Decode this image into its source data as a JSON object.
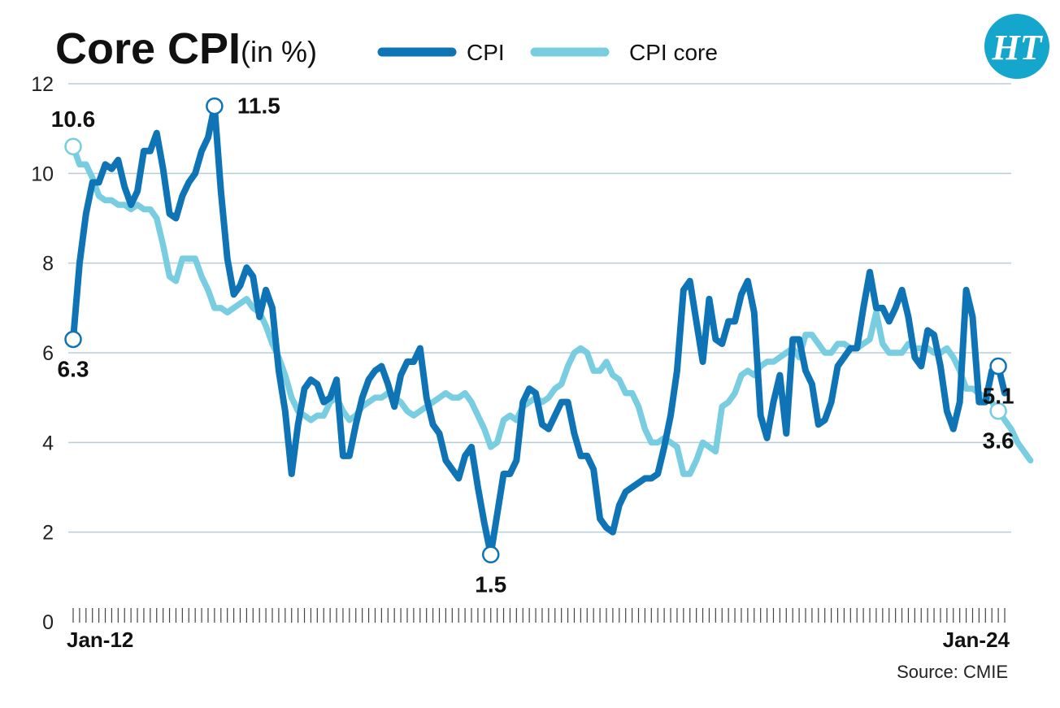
{
  "title": "Core CPI",
  "subtitle": "(in %)",
  "source": "Source: CMIE",
  "logo_text": "HT",
  "colors": {
    "cpi": "#0f74b5",
    "core": "#79cde0",
    "grid": "#b8cdd6",
    "logo": "#14a6cc"
  },
  "legend": [
    {
      "label": "CPI",
      "key": "cpi"
    },
    {
      "label": "CPI core",
      "key": "core"
    }
  ],
  "chart_data": {
    "type": "line",
    "x_start_label": "Jan-12",
    "x_end_label": "Jan-24",
    "ylim": [
      0,
      12
    ],
    "yticks": [
      0,
      2,
      4,
      6,
      8,
      10,
      12
    ],
    "grid": true,
    "legend_position": "top",
    "series": [
      {
        "name": "CPI",
        "key": "cpi",
        "values": [
          6.3,
          8.0,
          9.1,
          9.8,
          9.8,
          10.2,
          10.1,
          10.3,
          9.7,
          9.3,
          9.6,
          10.5,
          10.5,
          10.9,
          10.1,
          9.1,
          9.0,
          9.5,
          9.8,
          10.0,
          10.5,
          10.8,
          11.5,
          9.6,
          8.1,
          7.3,
          7.5,
          7.9,
          7.7,
          6.8,
          7.4,
          7.0,
          5.6,
          4.7,
          3.3,
          4.4,
          5.2,
          5.4,
          5.3,
          4.9,
          5.0,
          5.4,
          3.7,
          3.7,
          4.4,
          5.0,
          5.4,
          5.6,
          5.7,
          5.3,
          4.8,
          5.5,
          5.8,
          5.8,
          6.1,
          5.0,
          4.4,
          4.2,
          3.6,
          3.4,
          3.2,
          3.7,
          3.9,
          3.0,
          2.2,
          1.5,
          2.4,
          3.3,
          3.3,
          3.6,
          4.9,
          5.2,
          5.1,
          4.4,
          4.3,
          4.6,
          4.9,
          4.9,
          4.2,
          3.7,
          3.7,
          3.4,
          2.3,
          2.1,
          2.0,
          2.6,
          2.9,
          3.0,
          3.1,
          3.2,
          3.2,
          3.3,
          3.9,
          4.6,
          5.6,
          7.4,
          7.6,
          6.7,
          5.8,
          7.2,
          6.3,
          6.2,
          6.7,
          6.7,
          7.3,
          7.6,
          6.9,
          4.6,
          4.1,
          4.9,
          5.5,
          4.2,
          6.3,
          6.3,
          5.6,
          5.3,
          4.4,
          4.5,
          4.9,
          5.7,
          5.9,
          6.1,
          6.1,
          7.0,
          7.8,
          7.0,
          7.0,
          6.7,
          7.0,
          7.4,
          6.8,
          5.9,
          5.7,
          6.5,
          6.4,
          5.7,
          4.7,
          4.3,
          4.9,
          7.4,
          6.8,
          4.9,
          4.9,
          5.6,
          5.7,
          5.1
        ]
      },
      {
        "name": "CPI core",
        "key": "core",
        "values": [
          10.6,
          10.2,
          10.2,
          9.9,
          9.5,
          9.4,
          9.4,
          9.3,
          9.3,
          9.2,
          9.3,
          9.2,
          9.2,
          9.0,
          8.4,
          7.7,
          7.6,
          8.1,
          8.1,
          8.1,
          7.7,
          7.4,
          7.0,
          7.0,
          6.9,
          7.0,
          7.1,
          7.2,
          7.0,
          6.9,
          6.6,
          6.2,
          5.9,
          5.5,
          5.0,
          4.7,
          4.6,
          4.5,
          4.6,
          4.6,
          4.9,
          5.0,
          4.7,
          4.5,
          4.6,
          4.8,
          4.9,
          5.0,
          5.0,
          5.1,
          5.0,
          4.9,
          4.7,
          4.6,
          4.7,
          4.8,
          4.9,
          5.0,
          5.1,
          5.0,
          5.0,
          5.1,
          4.9,
          4.6,
          4.3,
          3.9,
          4.0,
          4.5,
          4.6,
          4.5,
          4.8,
          4.9,
          5.0,
          4.9,
          5.0,
          5.2,
          5.3,
          5.7,
          6.0,
          6.1,
          6.0,
          5.6,
          5.6,
          5.8,
          5.5,
          5.4,
          5.1,
          5.1,
          4.8,
          4.3,
          4.0,
          4.0,
          4.1,
          4.0,
          3.9,
          3.3,
          3.3,
          3.6,
          4.0,
          3.9,
          3.8,
          4.8,
          4.9,
          5.1,
          5.5,
          5.6,
          5.5,
          5.7,
          5.8,
          5.8,
          5.9,
          6.0,
          6.1,
          5.9,
          6.4,
          6.4,
          6.2,
          6.0,
          6.0,
          6.2,
          6.2,
          6.1,
          6.1,
          6.2,
          6.3,
          6.9,
          6.2,
          6.0,
          6.0,
          6.0,
          6.2,
          6.1,
          6.1,
          6.1,
          6.0,
          6.0,
          6.1,
          5.9,
          5.6,
          5.2,
          5.2,
          5.1,
          5.0,
          4.9,
          4.7,
          4.5,
          4.3,
          4.0,
          3.8,
          3.6
        ]
      }
    ],
    "annotations": [
      {
        "series": "cpi",
        "index": 0,
        "label": "6.3",
        "pos": "below"
      },
      {
        "series": "core",
        "index": 0,
        "label": "10.6",
        "pos": "above"
      },
      {
        "series": "cpi",
        "index": 22,
        "label": "11.5",
        "pos": "right"
      },
      {
        "series": "cpi",
        "index": 65,
        "label": "1.5",
        "pos": "below"
      },
      {
        "series": "cpi",
        "index": 144,
        "label": "5.1",
        "pos": "below"
      },
      {
        "series": "core",
        "index": 144,
        "label": "3.6",
        "pos": "below"
      }
    ]
  }
}
